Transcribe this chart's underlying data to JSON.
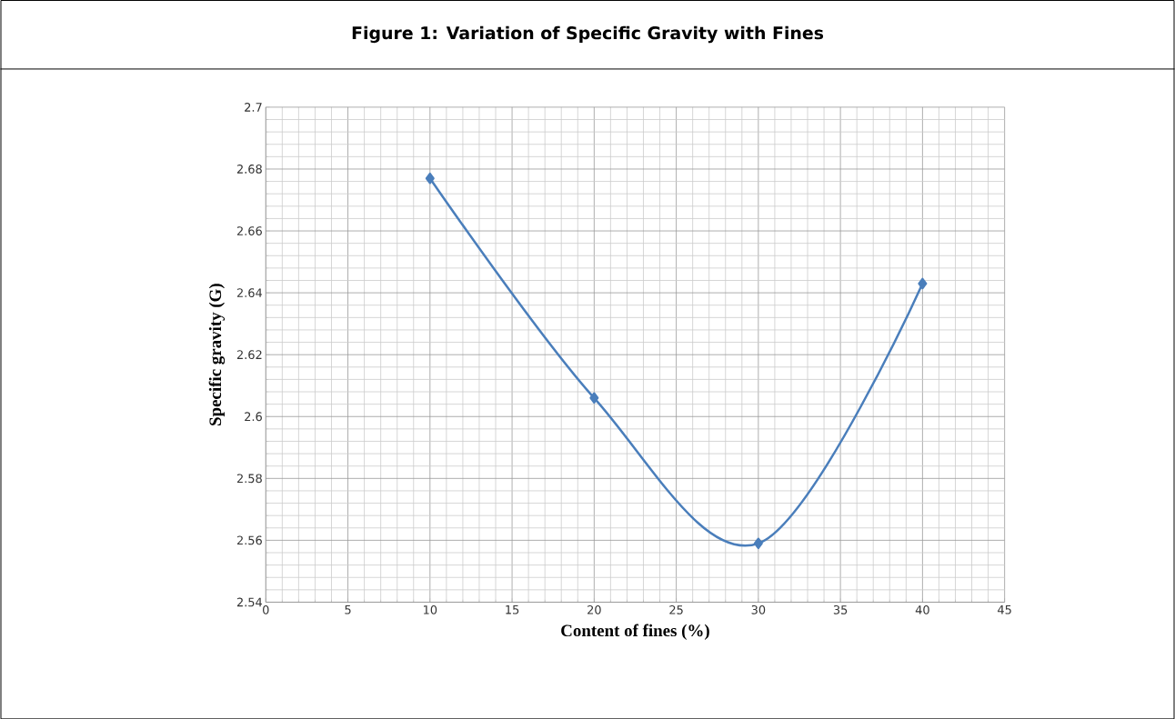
{
  "chart_data": {
    "type": "line",
    "title": "Figure 1: Variation of Specific Gravity with Fines",
    "xlabel": "Content of fines (%)",
    "ylabel": "Specific gravity (G)",
    "series": [
      {
        "color": "#4a7ebb",
        "x": [
          10,
          20,
          30,
          40
        ],
        "values": [
          2.677,
          2.606,
          2.559,
          2.643
        ]
      }
    ],
    "xlim": [
      0,
      45
    ],
    "ylim": [
      2.54,
      2.7
    ],
    "xticks": [
      0,
      5,
      10,
      15,
      20,
      25,
      30,
      35,
      40,
      45
    ],
    "yticks": [
      2.54,
      2.56,
      2.58,
      2.6,
      2.62,
      2.64,
      2.66,
      2.68,
      2.7
    ],
    "grid": true,
    "marker": "diamond",
    "line_style": "solid"
  }
}
